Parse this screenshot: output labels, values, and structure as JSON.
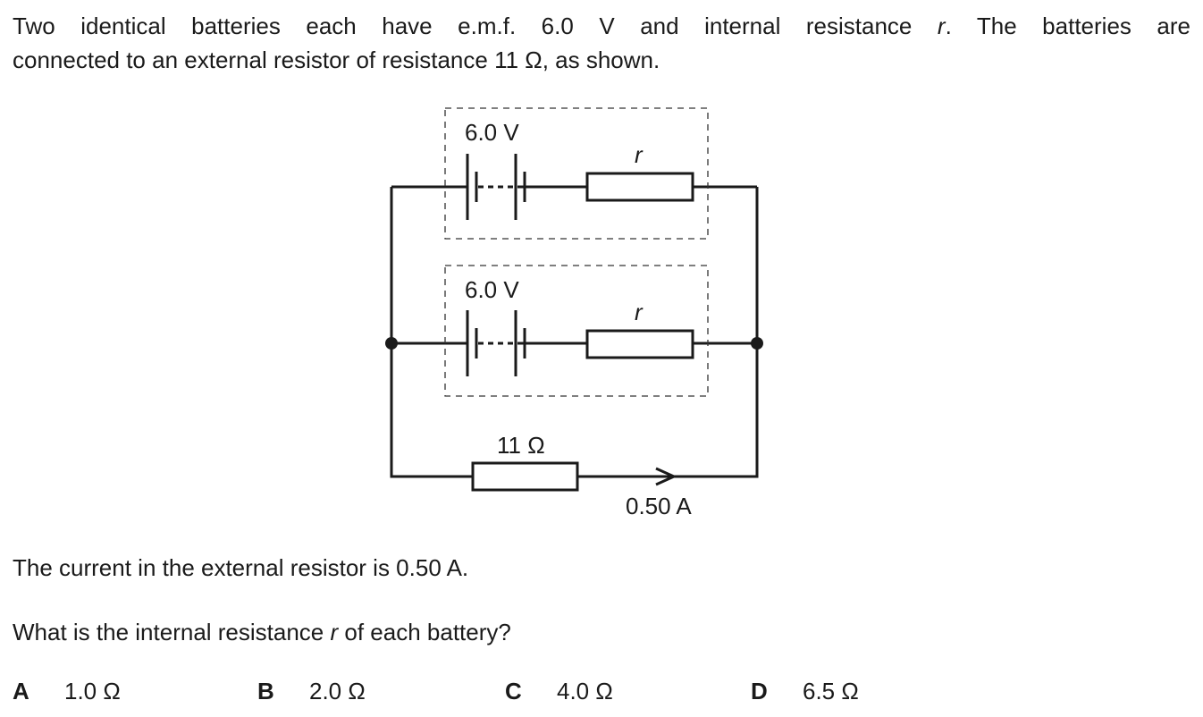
{
  "question": {
    "intro_line1": "Two identical batteries each have e.m.f. 6.0 V and internal resistance r. The batteries are",
    "intro_line2": "connected to an external resistor of resistance 11 Ω, as shown.",
    "statement": "The current in the external resistor is 0.50 A.",
    "prompt": "What is the internal resistance r of each battery?"
  },
  "circuit": {
    "battery_top_emf": "6.0 V",
    "battery_top_r": "r",
    "battery_bottom_emf": "6.0 V",
    "battery_bottom_r": "r",
    "external_resistor": "11 Ω",
    "current": "0.50 A"
  },
  "options": [
    {
      "letter": "A",
      "value": "1.0 Ω"
    },
    {
      "letter": "B",
      "value": "2.0 Ω"
    },
    {
      "letter": "C",
      "value": "4.0 Ω"
    },
    {
      "letter": "D",
      "value": "6.5 Ω"
    }
  ]
}
